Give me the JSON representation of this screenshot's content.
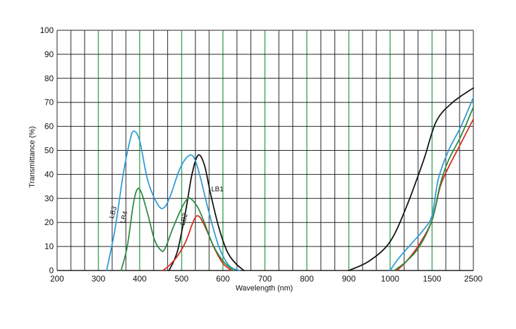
{
  "chart_data": {
    "type": "line",
    "title": "",
    "xlabel": "Wavelength (nm)",
    "ylabel": "Transmittance (%)",
    "x_tick_labels": [
      "200",
      "300",
      "400",
      "500",
      "600",
      "700",
      "800",
      "900",
      "1000",
      "1500",
      "2500"
    ],
    "y_ticks": [
      0,
      10,
      20,
      30,
      40,
      50,
      60,
      70,
      80,
      90,
      100
    ],
    "ylim": [
      0,
      100
    ],
    "grid": true,
    "x_scale_note": "linear 200-900 nm, then compressed 900-1000, 1000-1500, 1500-2500",
    "colors": {
      "grid_black": "#222222",
      "grid_green": "#2e9e4a",
      "LB1": "#111111",
      "LB2": "#d42a1e",
      "LB3": "#2f9bd6",
      "LB4": "#2a8c3f"
    },
    "series": [
      {
        "name": "LB1",
        "points": [
          [
            470,
            0
          ],
          [
            490,
            8
          ],
          [
            510,
            25
          ],
          [
            525,
            40
          ],
          [
            540,
            48
          ],
          [
            555,
            44
          ],
          [
            570,
            32
          ],
          [
            590,
            18
          ],
          [
            610,
            8
          ],
          [
            630,
            3
          ],
          [
            650,
            0
          ],
          [
            900,
            0
          ],
          [
            950,
            4
          ],
          [
            1000,
            12
          ],
          [
            1200,
            27
          ],
          [
            1400,
            46
          ],
          [
            1600,
            62
          ],
          [
            2000,
            70
          ],
          [
            2500,
            76
          ]
        ]
      },
      {
        "name": "LB2",
        "points": [
          [
            455,
            0
          ],
          [
            470,
            2
          ],
          [
            490,
            6
          ],
          [
            510,
            12
          ],
          [
            525,
            19
          ],
          [
            535,
            22.5
          ],
          [
            545,
            22
          ],
          [
            560,
            17
          ],
          [
            580,
            9
          ],
          [
            600,
            3
          ],
          [
            620,
            0
          ],
          [
            1080,
            0
          ],
          [
            1200,
            4
          ],
          [
            1350,
            11
          ],
          [
            1500,
            21
          ],
          [
            1700,
            35
          ],
          [
            1900,
            43
          ],
          [
            2200,
            53
          ],
          [
            2500,
            63
          ]
        ]
      },
      {
        "name": "LB3",
        "points": [
          [
            320,
            0
          ],
          [
            340,
            17
          ],
          [
            360,
            40
          ],
          [
            375,
            53
          ],
          [
            385,
            58
          ],
          [
            400,
            54
          ],
          [
            420,
            37
          ],
          [
            445,
            27
          ],
          [
            460,
            26.5
          ],
          [
            475,
            32
          ],
          [
            495,
            42
          ],
          [
            515,
            47.5
          ],
          [
            530,
            47
          ],
          [
            545,
            39
          ],
          [
            565,
            25
          ],
          [
            590,
            10
          ],
          [
            615,
            2
          ],
          [
            640,
            0
          ],
          [
            1000,
            0
          ],
          [
            1100,
            5
          ],
          [
            1250,
            11
          ],
          [
            1400,
            17
          ],
          [
            1500,
            23
          ],
          [
            1650,
            38
          ],
          [
            1900,
            50
          ],
          [
            2200,
            60
          ],
          [
            2500,
            72
          ]
        ]
      },
      {
        "name": "LB4",
        "points": [
          [
            355,
            0
          ],
          [
            370,
            10
          ],
          [
            385,
            28
          ],
          [
            395,
            34
          ],
          [
            405,
            32
          ],
          [
            420,
            23
          ],
          [
            435,
            13
          ],
          [
            450,
            8.5
          ],
          [
            460,
            9
          ],
          [
            480,
            18
          ],
          [
            500,
            26
          ],
          [
            515,
            30
          ],
          [
            525,
            29.5
          ],
          [
            540,
            26
          ],
          [
            555,
            20
          ],
          [
            575,
            11
          ],
          [
            600,
            4
          ],
          [
            625,
            0
          ],
          [
            1050,
            0
          ],
          [
            1200,
            4
          ],
          [
            1350,
            10
          ],
          [
            1500,
            21
          ],
          [
            1700,
            36
          ],
          [
            1900,
            46
          ],
          [
            2200,
            56
          ],
          [
            2500,
            68
          ]
        ]
      }
    ]
  }
}
